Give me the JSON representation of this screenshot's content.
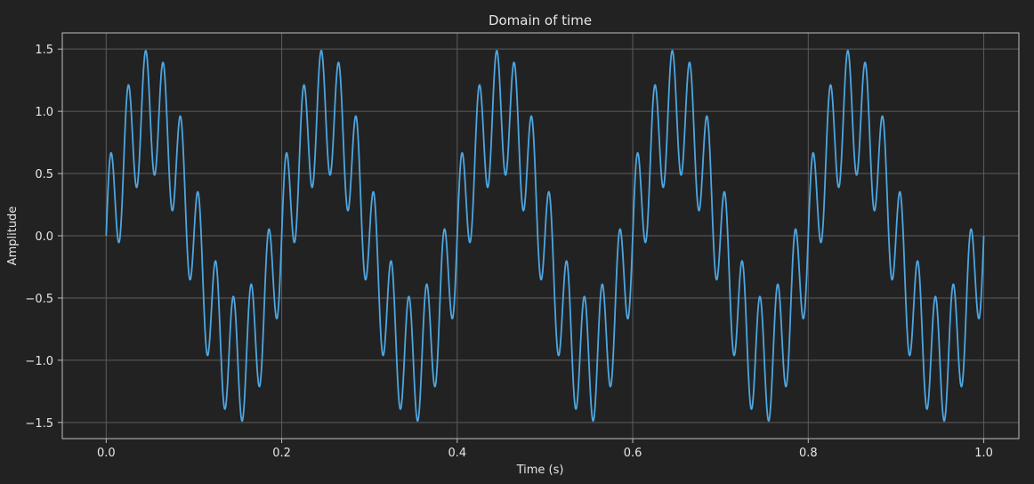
{
  "chart_data": {
    "type": "line",
    "title": "Domain of time",
    "xlabel": "Time (s)",
    "ylabel": "Amplitude",
    "xlim": [
      -0.05,
      1.04
    ],
    "ylim": [
      -1.63,
      1.63
    ],
    "xticks": [
      0.0,
      0.2,
      0.4,
      0.6,
      0.8,
      1.0
    ],
    "xtick_labels": [
      "0.0",
      "0.2",
      "0.4",
      "0.6",
      "0.8",
      "1.0"
    ],
    "yticks": [
      1.5,
      1.0,
      0.5,
      0.0,
      -0.5,
      -1.0,
      -1.5
    ],
    "ytick_labels": [
      "1.5",
      "1.0",
      "0.5",
      "0.0",
      "−0.5",
      "−1.0",
      "−1.5"
    ],
    "grid": true,
    "x_range": [
      0.0,
      1.0
    ],
    "series": [
      {
        "components": [
          {
            "frequency_hz": 5,
            "amplitude": 1.0
          },
          {
            "frequency_hz": 50,
            "amplitude": 0.5
          }
        ]
      }
    ],
    "colors": {
      "background": "#222222",
      "line": "#4da6e0",
      "grid": "#5c5c5c",
      "axes": "#bdbdbd",
      "text": "#e6e6e6"
    }
  }
}
